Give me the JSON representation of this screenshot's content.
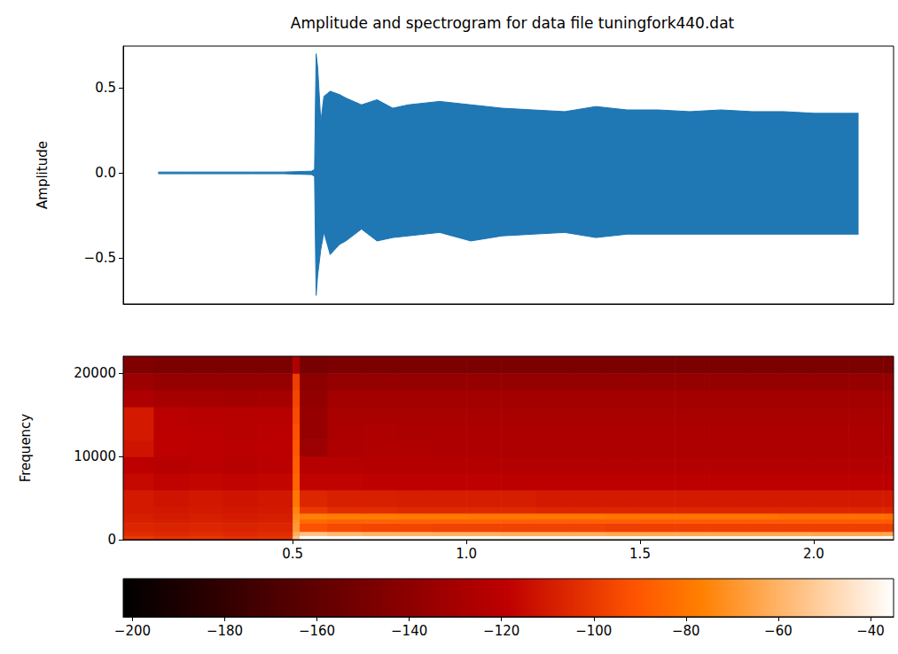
{
  "chart_data": [
    {
      "type": "line",
      "title": "Amplitude and spectrogram for data file tuningfork440.dat",
      "ylabel": "Amplitude",
      "color": "#1f77b4",
      "tick_labels": "y",
      "x": [
        0,
        0.1,
        0.2,
        0.3,
        0.4,
        0.49,
        0.5,
        0.505,
        0.51,
        0.52,
        0.53,
        0.55,
        0.58,
        0.6,
        0.65,
        0.7,
        0.75,
        0.8,
        0.9,
        1.0,
        1.1,
        1.2,
        1.3,
        1.4,
        1.5,
        1.6,
        1.7,
        1.8,
        1.9,
        2.0,
        2.1,
        2.2,
        2.24
      ],
      "series": [
        {
          "values": [
            0.005,
            0.005,
            0.005,
            0.005,
            0.005,
            0.01,
            0.02,
            0.7,
            0.62,
            0.3,
            0.45,
            0.48,
            0.46,
            0.44,
            0.4,
            0.43,
            0.38,
            0.4,
            0.42,
            0.4,
            0.38,
            0.37,
            0.36,
            0.39,
            0.37,
            0.37,
            0.36,
            0.37,
            0.36,
            0.36,
            0.35,
            0.35,
            0.35
          ]
        },
        {
          "values": [
            -0.005,
            -0.005,
            -0.005,
            -0.005,
            -0.005,
            -0.01,
            -0.02,
            -0.72,
            -0.6,
            -0.45,
            -0.35,
            -0.48,
            -0.42,
            -0.4,
            -0.33,
            -0.4,
            -0.38,
            -0.37,
            -0.35,
            -0.4,
            -0.37,
            -0.36,
            -0.35,
            -0.38,
            -0.36,
            -0.36,
            -0.36,
            -0.36,
            -0.36,
            -0.36,
            -0.36,
            -0.36,
            -0.36
          ]
        }
      ],
      "xlim": [
        -0.112,
        2.352
      ],
      "ylim": [
        -0.77,
        0.745
      ],
      "yticks": [
        {
          "value": -0.5,
          "label": "−0.5"
        },
        {
          "value": 0,
          "label": "0.0"
        },
        0.5
      ]
    },
    {
      "type": "heatmap",
      "ylabel": "Frequency",
      "x_bins": [
        0.012,
        0.1,
        0.2,
        0.3,
        0.4,
        0.5,
        0.52,
        0.6,
        0.7,
        0.8,
        0.9,
        1.0,
        1.1,
        1.2,
        1.3,
        1.4,
        1.5,
        1.6,
        1.7,
        1.8,
        1.9,
        2.0,
        2.1,
        2.2,
        2.23
      ],
      "y_bins": [
        0,
        500,
        1000,
        2000,
        2500,
        3200,
        4000,
        6000,
        8000,
        10000,
        12000,
        14000,
        16000,
        18000,
        20000,
        22050
      ],
      "values": [
        [
          -100,
          -102,
          -101,
          -103,
          -102,
          -55,
          -36,
          -36,
          -37,
          -37,
          -37,
          -37,
          -38,
          -38,
          -38,
          -38,
          -38,
          -38,
          -38,
          -38,
          -38,
          -38,
          -38,
          -38
        ],
        [
          -104,
          -105,
          -104,
          -105,
          -104,
          -62,
          -55,
          -58,
          -60,
          -60,
          -61,
          -61,
          -62,
          -62,
          -62,
          -63,
          -63,
          -63,
          -63,
          -63,
          -63,
          -64,
          -64,
          -64
        ],
        [
          -106,
          -107,
          -106,
          -107,
          -106,
          -68,
          -92,
          -95,
          -96,
          -96,
          -97,
          -97,
          -97,
          -97,
          -97,
          -98,
          -98,
          -98,
          -98,
          -98,
          -98,
          -98,
          -98,
          -98
        ],
        [
          -108,
          -109,
          -108,
          -109,
          -108,
          -70,
          -84,
          -86,
          -86,
          -87,
          -87,
          -87,
          -88,
          -88,
          -88,
          -88,
          -89,
          -89,
          -89,
          -89,
          -89,
          -89,
          -89,
          -89
        ],
        [
          -109,
          -110,
          -109,
          -110,
          -109,
          -72,
          -76,
          -78,
          -78,
          -79,
          -79,
          -80,
          -80,
          -80,
          -80,
          -81,
          -81,
          -81,
          -81,
          -81,
          -82,
          -82,
          -82,
          -82
        ],
        [
          -110,
          -111,
          -110,
          -111,
          -110,
          -75,
          -100,
          -104,
          -104,
          -105,
          -105,
          -105,
          -105,
          -106,
          -106,
          -106,
          -106,
          -106,
          -106,
          -106,
          -106,
          -106,
          -106,
          -106
        ],
        [
          -110,
          -112,
          -111,
          -112,
          -111,
          -80,
          -106,
          -108,
          -108,
          -109,
          -109,
          -109,
          -109,
          -110,
          -110,
          -110,
          -110,
          -110,
          -110,
          -110,
          -110,
          -110,
          -110,
          -110
        ],
        [
          -116,
          -118,
          -117,
          -118,
          -117,
          -86,
          -118,
          -118,
          -119,
          -119,
          -119,
          -119,
          -120,
          -120,
          -120,
          -120,
          -120,
          -120,
          -120,
          -120,
          -120,
          -120,
          -120,
          -120
        ],
        [
          -120,
          -122,
          -121,
          -122,
          -121,
          -88,
          -122,
          -122,
          -123,
          -123,
          -123,
          -123,
          -124,
          -124,
          -124,
          -124,
          -124,
          -124,
          -124,
          -124,
          -124,
          -124,
          -124,
          -124
        ],
        [
          -112,
          -119,
          -120,
          -121,
          -120,
          -90,
          -134,
          -126,
          -125,
          -125,
          -126,
          -126,
          -126,
          -126,
          -126,
          -126,
          -126,
          -126,
          -126,
          -126,
          -126,
          -126,
          -126,
          -126
        ],
        [
          -110,
          -120,
          -121,
          -122,
          -121,
          -92,
          -136,
          -127,
          -126,
          -127,
          -127,
          -127,
          -127,
          -127,
          -127,
          -127,
          -127,
          -127,
          -127,
          -127,
          -127,
          -127,
          -127,
          -127
        ],
        [
          -110,
          -121,
          -122,
          -122,
          -122,
          -94,
          -136,
          -128,
          -128,
          -128,
          -128,
          -128,
          -128,
          -128,
          -128,
          -128,
          -128,
          -128,
          -128,
          -128,
          -128,
          -128,
          -128,
          -128
        ],
        [
          -126,
          -129,
          -129,
          -130,
          -129,
          -96,
          -138,
          -131,
          -131,
          -131,
          -131,
          -131,
          -131,
          -131,
          -131,
          -131,
          -131,
          -131,
          -131,
          -131,
          -131,
          -131,
          -131,
          -131
        ],
        [
          -134,
          -136,
          -136,
          -136,
          -136,
          -98,
          -140,
          -136,
          -136,
          -136,
          -136,
          -136,
          -136,
          -136,
          -136,
          -136,
          -136,
          -136,
          -136,
          -136,
          -136,
          -136,
          -136,
          -136
        ],
        [
          -146,
          -148,
          -148,
          -148,
          -148,
          -125,
          -150,
          -148,
          -148,
          -148,
          -148,
          -148,
          -148,
          -148,
          -148,
          -148,
          -148,
          -148,
          -148,
          -148,
          -148,
          -148,
          -148,
          -148
        ]
      ],
      "xlim": [
        0.012,
        2.23
      ],
      "ylim": [
        0,
        22050
      ],
      "xticks": [
        0.5,
        {
          "value": 1,
          "label": "1.0"
        },
        1.5,
        {
          "value": 2,
          "label": "2.0"
        }
      ],
      "yticks": [
        0,
        10000,
        20000
      ],
      "clim": [
        -202,
        -35
      ],
      "cticks": [
        {
          "value": -200,
          "label": "−200"
        },
        {
          "value": -180,
          "label": "−180"
        },
        {
          "value": -160,
          "label": "−160"
        },
        {
          "value": -140,
          "label": "−140"
        },
        {
          "value": -120,
          "label": "−120"
        },
        {
          "value": -100,
          "label": "−100"
        },
        {
          "value": -80,
          "label": "−80"
        },
        {
          "value": -60,
          "label": "−60"
        },
        {
          "value": -40,
          "label": "−40"
        }
      ]
    }
  ]
}
